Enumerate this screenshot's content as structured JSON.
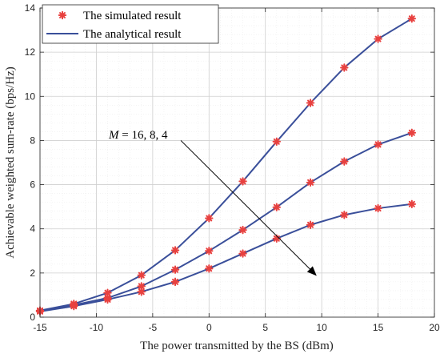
{
  "chart_data": {
    "type": "line",
    "xlabel": "The power transmitted by the BS (dBm)",
    "ylabel": "Achievable weighted sum-rate (bps/Hz)",
    "xlim": [
      -15,
      20
    ],
    "ylim": [
      0,
      14
    ],
    "xticks": [
      -15,
      -10,
      -5,
      0,
      5,
      10,
      15,
      20
    ],
    "yticks": [
      0,
      2,
      4,
      6,
      8,
      10,
      12,
      14
    ],
    "grid": true,
    "legend_position": "top-left",
    "legend": {
      "simulated": "The simulated result",
      "analytical": "The analytical result"
    },
    "colors": {
      "line": "#3a4f9a",
      "marker": "#e8413f"
    },
    "x": [
      -15,
      -12,
      -9,
      -6,
      -3,
      0,
      3,
      6,
      9,
      12,
      15,
      18
    ],
    "series": [
      {
        "values": [
          0.3,
          0.6,
          1.1,
          1.9,
          3.03,
          4.48,
          6.15,
          7.95,
          9.7,
          11.3,
          12.6,
          13.52
        ]
      },
      {
        "values": [
          0.27,
          0.55,
          0.87,
          1.4,
          2.15,
          3.0,
          3.95,
          4.98,
          6.1,
          7.05,
          7.82,
          8.35
        ]
      },
      {
        "values": [
          0.26,
          0.5,
          0.8,
          1.15,
          1.6,
          2.2,
          2.88,
          3.56,
          4.18,
          4.63,
          4.93,
          5.12
        ]
      }
    ],
    "annotation": {
      "label_math": "M",
      "label_rest": " = 16, 8, 4",
      "arrow_from": [
        -2.5,
        8.0
      ],
      "arrow_to": [
        9.5,
        1.9
      ]
    }
  }
}
